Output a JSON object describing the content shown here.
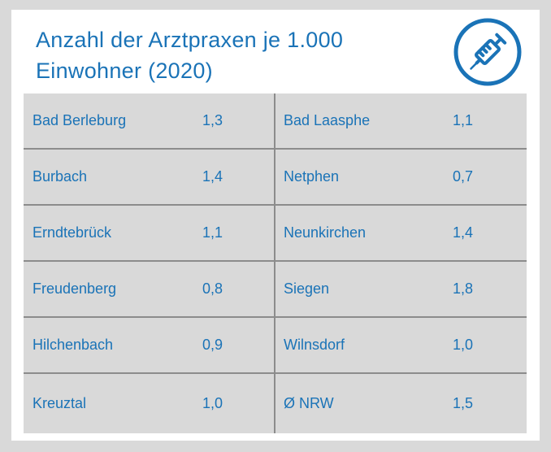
{
  "title_line1": "Anzahl der Arztpraxen je 1.000",
  "title_line2": "Einwohner (2020)",
  "icon": "syringe-icon",
  "colors": {
    "accent": "#1a73b7",
    "cell_bg": "#d9d9d9",
    "divider": "#8c8c8c"
  },
  "rows": [
    {
      "left_name": "Bad Berleburg",
      "left_value": "1,3",
      "right_name": "Bad Laasphe",
      "right_value": "1,1"
    },
    {
      "left_name": "Burbach",
      "left_value": "1,4",
      "right_name": "Netphen",
      "right_value": "0,7"
    },
    {
      "left_name": "Erndtebrück",
      "left_value": "1,1",
      "right_name": "Neunkirchen",
      "right_value": "1,4"
    },
    {
      "left_name": "Freudenberg",
      "left_value": "0,8",
      "right_name": "Siegen",
      "right_value": "1,8"
    },
    {
      "left_name": "Hilchenbach",
      "left_value": "0,9",
      "right_name": "Wilnsdorf",
      "right_value": "1,0"
    },
    {
      "left_name": "Kreuztal",
      "left_value": "1,0",
      "right_name": "Ø NRW",
      "right_value": "1,5"
    }
  ]
}
